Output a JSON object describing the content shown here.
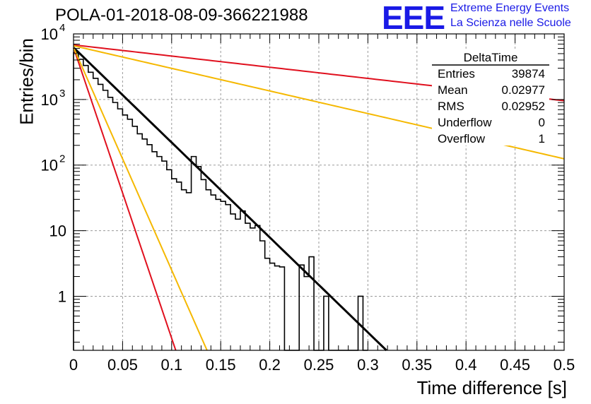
{
  "title": "POLA-01-2018-08-09-366221988",
  "logo": {
    "mark": "EEE",
    "line1": "Extreme Energy Events",
    "line2": "La Scienza nelle Scuole",
    "color": "#1a1ae6"
  },
  "chart_data": {
    "type": "histogram",
    "xlabel": "Time difference [s]",
    "ylabel": "Entries/bin",
    "xlim": [
      0,
      0.5
    ],
    "ylim": [
      0.15,
      10000
    ],
    "y_scale": "log",
    "grid": true,
    "x_ticks": [
      "0",
      "0.05",
      "0.1",
      "0.15",
      "0.2",
      "0.25",
      "0.3",
      "0.35",
      "0.4",
      "0.45",
      "0.5"
    ],
    "y_ticks": [
      {
        "value": 1,
        "label": "1"
      },
      {
        "value": 10,
        "label": "10"
      },
      {
        "value": 100,
        "label": "10",
        "exp": "2"
      },
      {
        "value": 1000,
        "label": "10",
        "exp": "3"
      },
      {
        "value": 10000,
        "label": "10",
        "exp": "4"
      }
    ],
    "bin_width": 0.005,
    "bin_start": 0,
    "histogram_values": [
      5200,
      4100,
      3300,
      2600,
      2100,
      1700,
      1380,
      1080,
      900,
      720,
      580,
      500,
      390,
      300,
      250,
      205,
      160,
      135,
      115,
      85,
      62,
      55,
      42,
      38,
      135,
      95,
      60,
      42,
      35,
      30,
      28,
      25,
      18,
      15,
      20,
      13,
      11,
      12,
      7,
      3.8,
      3.2,
      2.9,
      2.8,
      0.1,
      0.1,
      0.1,
      3.0,
      2.0,
      4.0,
      0.1,
      0.1,
      1.0,
      0.1,
      0.1,
      0.1,
      0.1,
      0.1,
      0.1,
      1.0,
      0.1
    ],
    "series": [
      {
        "name": "",
        "color": "#000000",
        "kind": "fit",
        "x0": 0,
        "y0": 6200,
        "tau": 0.03,
        "x_end": 0.322
      },
      {
        "name": "",
        "color": "#e0101e",
        "kind": "line",
        "x0": 0,
        "y0": 6800,
        "tau": 0.255,
        "x_end": 0.5
      },
      {
        "name": "",
        "color": "#f5b800",
        "kind": "line",
        "x0": 0,
        "y0": 6600,
        "tau": 0.126,
        "x_end": 0.5
      },
      {
        "name": "",
        "color": "#e0101e",
        "kind": "line",
        "x0": 0,
        "y0": 6200,
        "tau": 0.0098,
        "x_end": 0.105
      },
      {
        "name": "",
        "color": "#f5b800",
        "kind": "line",
        "x0": 0,
        "y0": 6200,
        "tau": 0.0128,
        "x_end": 0.136
      }
    ]
  },
  "stats": {
    "title": "DeltaTime",
    "rows": [
      {
        "label": "Entries",
        "value": "39874"
      },
      {
        "label": "Mean",
        "value": "0.02977"
      },
      {
        "label": "RMS",
        "value": "0.02952"
      },
      {
        "label": "Underflow",
        "value": "0"
      },
      {
        "label": "Overflow",
        "value": "1"
      }
    ]
  }
}
